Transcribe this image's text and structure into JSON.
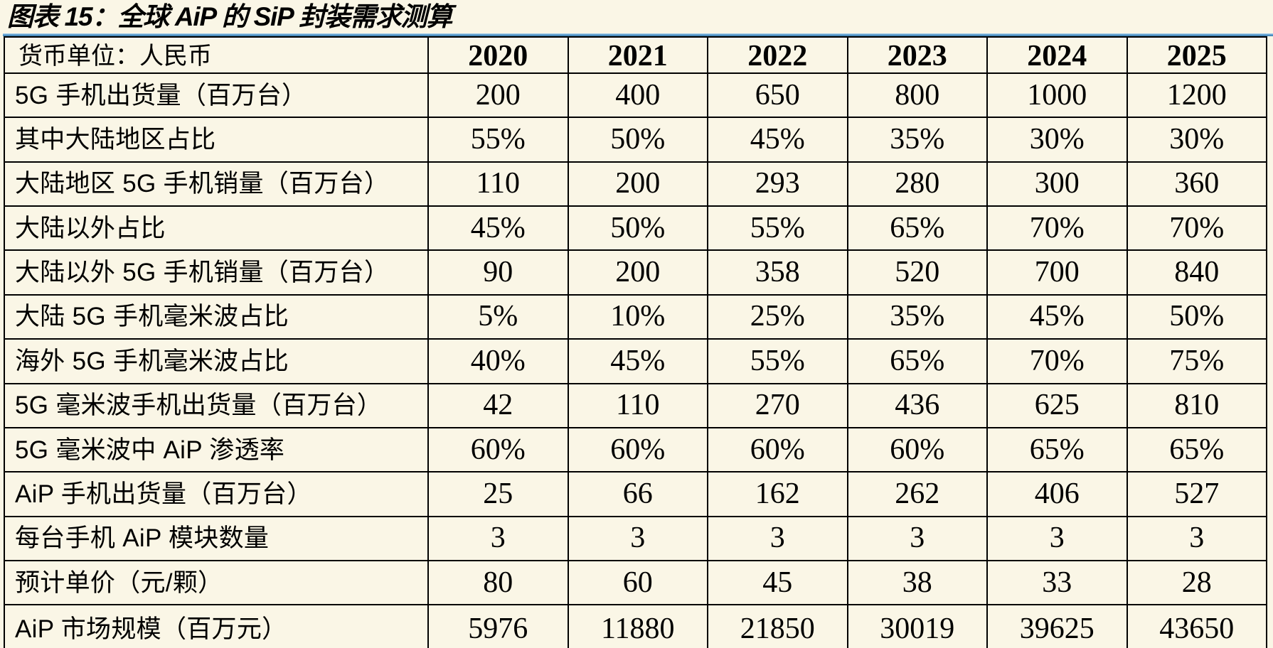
{
  "title": "图表 15：全球 AiP 的 SiP 封装需求测算",
  "colors": {
    "page_background": "#faf6e6",
    "rule_blue": "#4a90c4",
    "table_border": "#000000",
    "text": "#000000"
  },
  "table": {
    "unit_label": "货币单位：人民币",
    "years": [
      "2020",
      "2021",
      "2022",
      "2023",
      "2024",
      "2025"
    ],
    "rows": [
      {
        "label": "5G 手机出货量（百万台）",
        "values": [
          "200",
          "400",
          "650",
          "800",
          "1000",
          "1200"
        ]
      },
      {
        "label": "其中大陆地区占比",
        "values": [
          "55%",
          "50%",
          "45%",
          "35%",
          "30%",
          "30%"
        ]
      },
      {
        "label": "大陆地区 5G 手机销量（百万台）",
        "values": [
          "110",
          "200",
          "293",
          "280",
          "300",
          "360"
        ]
      },
      {
        "label": "大陆以外占比",
        "values": [
          "45%",
          "50%",
          "55%",
          "65%",
          "70%",
          "70%"
        ]
      },
      {
        "label": "大陆以外 5G 手机销量（百万台）",
        "values": [
          "90",
          "200",
          "358",
          "520",
          "700",
          "840"
        ]
      },
      {
        "label": "大陆 5G 手机毫米波占比",
        "values": [
          "5%",
          "10%",
          "25%",
          "35%",
          "45%",
          "50%"
        ]
      },
      {
        "label": "海外 5G 手机毫米波占比",
        "values": [
          "40%",
          "45%",
          "55%",
          "65%",
          "70%",
          "75%"
        ]
      },
      {
        "label": "5G 毫米波手机出货量（百万台）",
        "values": [
          "42",
          "110",
          "270",
          "436",
          "625",
          "810"
        ]
      },
      {
        "label": "5G 毫米波中 AiP 渗透率",
        "values": [
          "60%",
          "60%",
          "60%",
          "60%",
          "65%",
          "65%"
        ]
      },
      {
        "label": "AiP 手机出货量（百万台）",
        "values": [
          "25",
          "66",
          "162",
          "262",
          "406",
          "527"
        ]
      },
      {
        "label": "每台手机 AiP 模块数量",
        "values": [
          "3",
          "3",
          "3",
          "3",
          "3",
          "3"
        ]
      },
      {
        "label": "预计单价（元/颗）",
        "values": [
          "80",
          "60",
          "45",
          "38",
          "33",
          "28"
        ]
      },
      {
        "label": "AiP 市场规模（百万元）",
        "values": [
          "5976",
          "11880",
          "21850",
          "30019",
          "39625",
          "43650"
        ]
      }
    ]
  }
}
